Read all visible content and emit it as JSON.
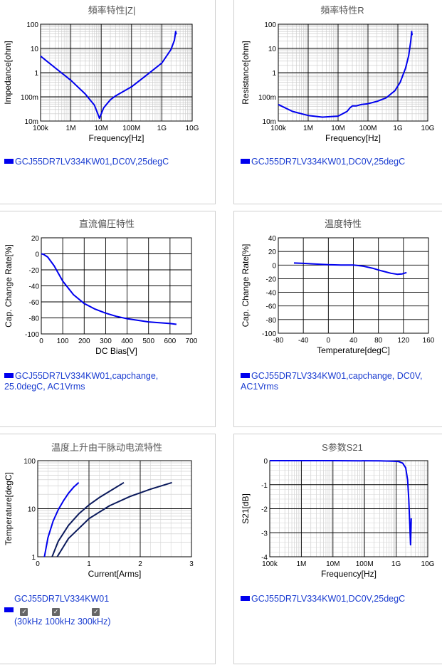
{
  "chart_data": [
    {
      "type": "line",
      "title": "頻率特性|Z|",
      "xlabel": "Frequency[Hz]",
      "ylabel": "Impedance[ohm]",
      "xscale": "log",
      "yscale": "log",
      "xlim": [
        100000,
        10000000000
      ],
      "ylim": [
        0.01,
        100
      ],
      "xticks": [
        "100k",
        "1M",
        "10M",
        "100M",
        "1G",
        "10G"
      ],
      "yticks": [
        "10m",
        "100m",
        "1",
        "10",
        "100"
      ],
      "grid": true,
      "legend": "GCJ55DR7LV334KW01,DC0V,25degC",
      "color": "#0000ee",
      "x": [
        100000,
        300000,
        1000000,
        3000000,
        6000000,
        8800000,
        12000000,
        20000000,
        30000000,
        100000000,
        300000000,
        1000000000,
        2000000000,
        2600000000,
        2850000000,
        3000000000
      ],
      "y": [
        4.8,
        1.6,
        0.48,
        0.13,
        0.045,
        0.013,
        0.035,
        0.075,
        0.11,
        0.26,
        0.75,
        2.5,
        9,
        22,
        50,
        38
      ]
    },
    {
      "type": "line",
      "title": "頻率特性R",
      "xlabel": "Frequency[Hz]",
      "ylabel": "Resistance[ohm]",
      "xscale": "log",
      "yscale": "log",
      "xlim": [
        100000,
        10000000000
      ],
      "ylim": [
        0.01,
        100
      ],
      "xticks": [
        "100k",
        "1M",
        "10M",
        "100M",
        "1G",
        "10G"
      ],
      "yticks": [
        "10m",
        "100m",
        "1",
        "10",
        "100"
      ],
      "grid": true,
      "legend": "GCJ55DR7LV334KW01,DC0V,25degC",
      "color": "#0000ee",
      "x": [
        100000,
        300000,
        1000000,
        3000000,
        10000000,
        20000000,
        25000000,
        30000000,
        40000000,
        60000000,
        100000000,
        200000000,
        400000000,
        800000000,
        1200000000,
        1800000000,
        2300000000,
        2700000000,
        2900000000,
        3000000000
      ],
      "y": [
        0.048,
        0.025,
        0.017,
        0.0145,
        0.016,
        0.025,
        0.035,
        0.042,
        0.042,
        0.048,
        0.052,
        0.065,
        0.09,
        0.18,
        0.4,
        1.5,
        5,
        20,
        50,
        35
      ]
    },
    {
      "type": "line",
      "title": "直流偏圧特性",
      "xlabel": "DC Bias[V]",
      "ylabel": "Cap. Change Rate[%]",
      "xlim": [
        0,
        700
      ],
      "ylim": [
        -100,
        20
      ],
      "xticks": [
        0,
        100,
        200,
        300,
        400,
        500,
        600,
        700
      ],
      "yticks": [
        -100,
        -80,
        -60,
        -40,
        -20,
        0,
        20
      ],
      "grid": true,
      "legend": "GCJ55DR7LV334KW01,capchange, 25.0degC, AC1Vrms",
      "color": "#0000ee",
      "x": [
        0,
        10,
        30,
        60,
        100,
        150,
        200,
        250,
        300,
        350,
        400,
        450,
        500,
        550,
        600,
        630
      ],
      "y": [
        0,
        -0.5,
        -4,
        -15,
        -34,
        -51,
        -62,
        -69,
        -74,
        -78,
        -81,
        -83,
        -85,
        -86,
        -87,
        -88
      ]
    },
    {
      "type": "line",
      "title": "温度特性",
      "xlabel": "Temperature[degC]",
      "ylabel": "Cap. Change Rate[%]",
      "xlim": [
        -80,
        160
      ],
      "ylim": [
        -100,
        40
      ],
      "xticks": [
        -80,
        -40,
        0,
        40,
        80,
        120,
        160
      ],
      "yticks": [
        -100,
        -80,
        -60,
        -40,
        -20,
        0,
        20,
        40
      ],
      "grid": true,
      "legend": "GCJ55DR7LV334KW01,capchange, DC0V, AC1Vrms",
      "color": "#0000ee",
      "x": [
        -55,
        -40,
        -20,
        0,
        20,
        40,
        55,
        70,
        85,
        100,
        110,
        118,
        125
      ],
      "y": [
        3,
        2.5,
        1.5,
        0.5,
        0,
        0,
        -1.5,
        -4.5,
        -8.5,
        -12,
        -13.5,
        -13,
        -11
      ]
    },
    {
      "type": "line",
      "title": "温度上升由干脉动电流特性",
      "xlabel": "Current[Arms]",
      "ylabel": "Temperature[degC]",
      "yscale": "log",
      "xlim": [
        0,
        3
      ],
      "ylim": [
        1,
        100
      ],
      "xticks": [
        0,
        1,
        2,
        3
      ],
      "yticks": [
        "1",
        "10",
        "100"
      ],
      "grid": true,
      "legend": "GCJ55DR7LV334KW01",
      "series": [
        {
          "name": "30kHz",
          "color": "#0000ee",
          "x": [
            0.13,
            0.2,
            0.3,
            0.4,
            0.5,
            0.6,
            0.7,
            0.8
          ],
          "y": [
            1,
            2.5,
            5.5,
            9.5,
            14.5,
            21,
            28,
            35
          ]
        },
        {
          "name": "100kHz",
          "color": "#0b1a5c",
          "x": [
            0.28,
            0.4,
            0.6,
            0.8,
            1.0,
            1.2,
            1.4,
            1.68
          ],
          "y": [
            1,
            2.1,
            4.5,
            7.8,
            12,
            17,
            23,
            35
          ]
        },
        {
          "name": "300kHz",
          "color": "#0b1a5c",
          "x": [
            0.38,
            0.6,
            1.0,
            1.4,
            1.8,
            2.2,
            2.62
          ],
          "y": [
            1,
            2.4,
            6.2,
            11.5,
            18,
            25.5,
            35
          ]
        }
      ],
      "checkbox_labels": [
        "(30kHz",
        "100kHz",
        "300kHz)"
      ]
    },
    {
      "type": "line",
      "title": "S参数S21",
      "xlabel": "Frequency[Hz]",
      "ylabel": "S21[dB]",
      "xscale": "log",
      "xlim": [
        100000,
        10000000000
      ],
      "ylim": [
        -4,
        0
      ],
      "xticks": [
        "100k",
        "1M",
        "10M",
        "100M",
        "1G",
        "10G"
      ],
      "yticks": [
        -4,
        -3,
        -2,
        -1,
        0
      ],
      "grid": true,
      "legend": "GCJ55DR7LV334KW01,DC0V,25degC",
      "color": "#0000ee",
      "x": [
        100000,
        10000000,
        300000000,
        800000000,
        1200000000,
        1600000000,
        2000000000,
        2300000000,
        2500000000,
        2700000000,
        2850000000,
        2950000000,
        3000000000
      ],
      "y": [
        0,
        0,
        -0.01,
        -0.02,
        -0.04,
        -0.1,
        -0.3,
        -0.8,
        -1.6,
        -2.7,
        -3.5,
        -2.8,
        -2.4
      ]
    }
  ]
}
